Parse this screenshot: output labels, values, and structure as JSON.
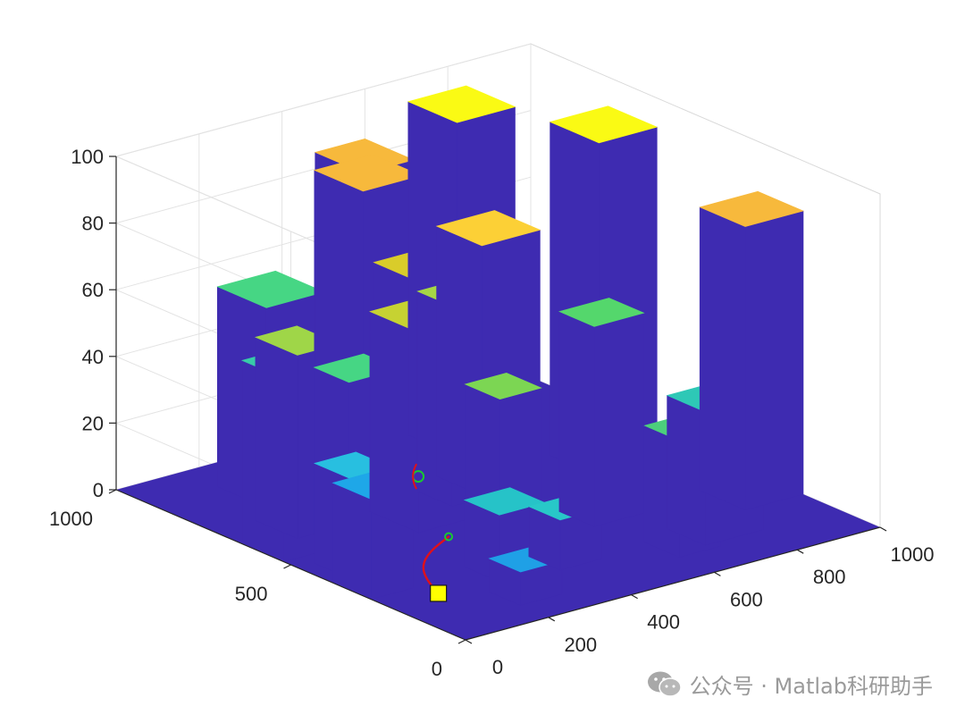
{
  "chart_data": {
    "type": "bar3d",
    "title": "",
    "xlabel": "",
    "ylabel": "",
    "zlabel": "",
    "xlim": [
      0,
      1000
    ],
    "ylim": [
      0,
      1000
    ],
    "zlim": [
      0,
      100
    ],
    "x_ticks": [
      {
        "value": 0,
        "label": "0"
      },
      {
        "value": 200,
        "label": "200"
      },
      {
        "value": 400,
        "label": "400"
      },
      {
        "value": 600,
        "label": "600"
      },
      {
        "value": 800,
        "label": "800"
      },
      {
        "value": 1000,
        "label": "1000"
      }
    ],
    "y_ticks": [
      {
        "value": 0,
        "label": "0"
      },
      {
        "value": 500,
        "label": "500"
      },
      {
        "value": 1000,
        "label": "1000"
      }
    ],
    "z_ticks": [
      {
        "value": 0,
        "label": "0"
      },
      {
        "value": 20,
        "label": "20"
      },
      {
        "value": 40,
        "label": "40"
      },
      {
        "value": 60,
        "label": "60"
      },
      {
        "value": 80,
        "label": "80"
      },
      {
        "value": 100,
        "label": "100"
      }
    ],
    "grid": true,
    "colormap": "parula",
    "side_color": "#3e2bb1",
    "floor_color": "#3e2bb1",
    "blocks": [
      {
        "x0": 860,
        "x1": 1000,
        "y0": 220,
        "y1": 350,
        "h": 85,
        "color": "#f7b93c"
      },
      {
        "x0": 760,
        "x1": 900,
        "y0": 520,
        "y1": 660,
        "h": 100,
        "color": "#fafa14"
      },
      {
        "x0": 620,
        "x1": 760,
        "y0": 760,
        "y1": 900,
        "h": 100,
        "color": "#fafa14"
      },
      {
        "x0": 680,
        "x1": 820,
        "y0": 120,
        "y1": 230,
        "h": 40,
        "color": "#2ec8b6"
      },
      {
        "x0": 580,
        "x1": 700,
        "y0": 320,
        "y1": 420,
        "h": 60,
        "color": "#54d76c"
      },
      {
        "x0": 600,
        "x1": 700,
        "y0": 100,
        "y1": 200,
        "h": 35,
        "color": "#4ccf7c"
      },
      {
        "x0": 520,
        "x1": 660,
        "y0": 570,
        "y1": 700,
        "h": 75,
        "color": "#fcd036"
      },
      {
        "x0": 440,
        "x1": 560,
        "y0": 560,
        "y1": 660,
        "h": 60,
        "color": "#a5d646"
      },
      {
        "x0": 420,
        "x1": 520,
        "y0": 400,
        "y1": 500,
        "h": 40,
        "color": "#7cd653"
      },
      {
        "x0": 380,
        "x1": 480,
        "y0": 180,
        "y1": 270,
        "h": 15,
        "color": "#28c8c8"
      },
      {
        "x0": 480,
        "x1": 600,
        "y0": 860,
        "y1": 1000,
        "h": 85,
        "color": "#f7b93c"
      },
      {
        "x0": 360,
        "x1": 500,
        "y0": 720,
        "y1": 860,
        "h": 90,
        "color": "#f7b93c"
      },
      {
        "x0": 360,
        "x1": 480,
        "y0": 560,
        "y1": 690,
        "h": 70,
        "color": "#d9cc2a"
      },
      {
        "x0": 300,
        "x1": 440,
        "y0": 490,
        "y1": 630,
        "h": 60,
        "color": "#c6d232"
      },
      {
        "x0": 250,
        "x1": 360,
        "y0": 200,
        "y1": 300,
        "h": 20,
        "color": "#26c3c8"
      },
      {
        "x0": 200,
        "x1": 300,
        "y0": 80,
        "y1": 170,
        "h": 10,
        "color": "#1fa0e6"
      },
      {
        "x0": 160,
        "x1": 300,
        "y0": 760,
        "y1": 900,
        "h": 60,
        "color": "#46d684"
      },
      {
        "x0": 100,
        "x1": 200,
        "y0": 600,
        "y1": 720,
        "h": 55,
        "color": "#9fd648"
      },
      {
        "x0": 140,
        "x1": 260,
        "y0": 500,
        "y1": 600,
        "h": 50,
        "color": "#46d684"
      },
      {
        "x0": 0,
        "x1": 100,
        "y0": 520,
        "y1": 640,
        "h": 55,
        "color": "#38cba8"
      },
      {
        "x0": 40,
        "x1": 140,
        "y0": 380,
        "y1": 480,
        "h": 30,
        "color": "#28bfe0"
      },
      {
        "x0": 0,
        "x1": 100,
        "y0": 270,
        "y1": 380,
        "h": 30,
        "color": "#1ea7e8"
      }
    ],
    "path": {
      "color": "#e0101a",
      "points": [
        {
          "x": 120,
          "y": 220,
          "z": 0
        },
        {
          "x": 150,
          "y": 290,
          "z": 0
        },
        {
          "x": 190,
          "y": 350,
          "z": 0
        },
        {
          "x": 250,
          "y": 400,
          "z": 0
        },
        {
          "x": 330,
          "y": 440,
          "z": 0
        }
      ]
    },
    "start_marker": {
      "x": 120,
      "y": 220,
      "z": 0,
      "color": "#ffff00"
    },
    "goal_marker": {
      "x": 330,
      "y": 440,
      "z": 0,
      "color": "#19c832"
    },
    "obstacle_marker": {
      "x": 240,
      "y": 420,
      "z": 22,
      "color": "#19c832",
      "arc_color": "#e0101a"
    }
  },
  "watermark": {
    "text": "公众号 · Matlab科研助手",
    "icon": "wechat-icon"
  }
}
